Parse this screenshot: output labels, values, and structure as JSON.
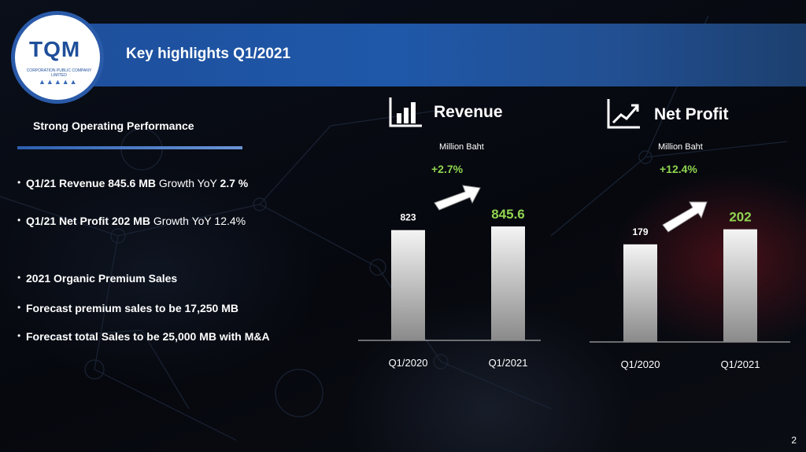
{
  "header": {
    "title": "Key highlights Q1/2021"
  },
  "logo": {
    "name": "TQM",
    "tagline": "CORPORATION PUBLIC COMPANY LIMITED",
    "icon": "tqm-logo-icon"
  },
  "left": {
    "section_title": "Strong Operating Performance",
    "bullets": [
      {
        "bold": "Q1/21 Revenue 845.6 MB",
        "normal": " Growth YoY ",
        "bold2": "2.7 %"
      },
      {
        "bold": "Q1/21 Net Profit 202 MB",
        "normal": " Growth YoY 12.4%",
        "bold2": ""
      },
      {
        "bold": "2021 Organic Premium Sales",
        "normal": "",
        "bold2": ""
      },
      {
        "bold": "Forecast premium sales to be 17,250 MB",
        "normal": "",
        "bold2": ""
      },
      {
        "bold": "Forecast total Sales to be 25,000 MB with M&A",
        "normal": "",
        "bold2": ""
      }
    ]
  },
  "colors": {
    "accent_blue": "#1f58a9",
    "growth_green": "#8fd44f",
    "bar_light": "#f2f2f2",
    "bar_dark": "#8a8a8a"
  },
  "chart_data": [
    {
      "type": "bar",
      "title": "Revenue",
      "unit_label": "Million Baht",
      "growth_label": "+2.7%",
      "icon": "bar-chart-icon",
      "categories": [
        "Q1/2020",
        "Q1/2021"
      ],
      "values": [
        823,
        845.6
      ],
      "value_labels": [
        "823",
        "845.6"
      ]
    },
    {
      "type": "bar",
      "title": "Net Profit",
      "unit_label": "Million Baht",
      "growth_label": "+12.4%",
      "icon": "line-chart-icon",
      "categories": [
        "Q1/2020",
        "Q1/2021"
      ],
      "values": [
        179,
        202
      ],
      "value_labels": [
        "179",
        "202"
      ]
    }
  ],
  "page_number": "2"
}
